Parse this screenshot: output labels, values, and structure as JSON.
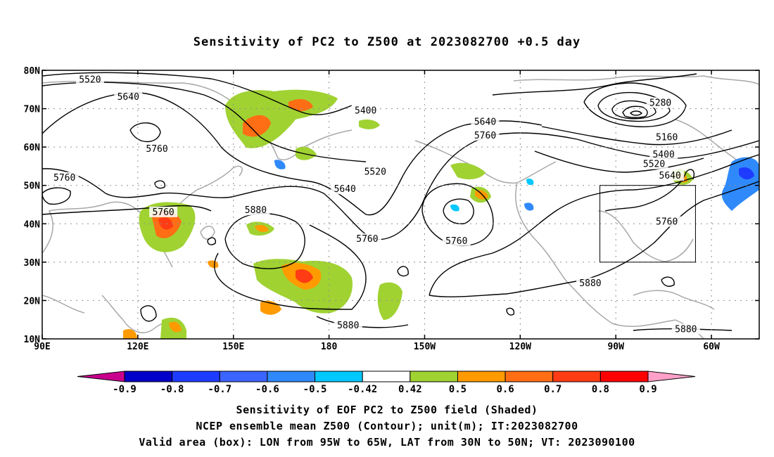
{
  "title": "Sensitivity of PC2 to Z500 at 2023082700 +0.5 day",
  "map": {
    "lat_ticks": [
      "80N",
      "70N",
      "60N",
      "50N",
      "40N",
      "30N",
      "20N",
      "10N"
    ],
    "lon_ticks": [
      "90E",
      "120E",
      "150E",
      "180",
      "150W",
      "120W",
      "90W",
      "60W"
    ],
    "lon_range": [
      "90E",
      "45W"
    ],
    "lat_range": [
      "10N",
      "80N"
    ],
    "grid": "dotted",
    "box": {
      "lon": [
        "95W",
        "65W"
      ],
      "lat": [
        "30N",
        "50N"
      ]
    },
    "contour_labels": [
      {
        "text": "5520",
        "lon": 105,
        "lat": 77.5
      },
      {
        "text": "5640",
        "lon": 117,
        "lat": 73
      },
      {
        "text": "5400",
        "lon": -168.5,
        "lat": 69.5
      },
      {
        "text": "5760",
        "lon": 126,
        "lat": 59.5
      },
      {
        "text": "5760",
        "lon": 97,
        "lat": 52
      },
      {
        "text": "5760",
        "lon": 128,
        "lat": 43
      },
      {
        "text": "5880",
        "lon": 157,
        "lat": 43.5
      },
      {
        "text": "5640",
        "lon": -175,
        "lat": 49
      },
      {
        "text": "5520",
        "lon": -165.5,
        "lat": 53.5
      },
      {
        "text": "5760",
        "lon": -168,
        "lat": 36
      },
      {
        "text": "5640",
        "lon": -131,
        "lat": 66.5
      },
      {
        "text": "5760",
        "lon": -131,
        "lat": 63
      },
      {
        "text": "5760",
        "lon": -140,
        "lat": 35.5
      },
      {
        "text": "5280",
        "lon": -76,
        "lat": 71.5
      },
      {
        "text": "5160",
        "lon": -74,
        "lat": 62.5
      },
      {
        "text": "5400",
        "lon": -75,
        "lat": 58
      },
      {
        "text": "5520",
        "lon": -78,
        "lat": 55.5
      },
      {
        "text": "5640",
        "lon": -73,
        "lat": 52.5
      },
      {
        "text": "5760",
        "lon": -74,
        "lat": 40.5
      },
      {
        "text": "5880",
        "lon": -98,
        "lat": 24.5
      },
      {
        "text": "5880",
        "lon": -174,
        "lat": 13.5
      },
      {
        "text": "5880",
        "lon": -68,
        "lat": 12.5
      }
    ]
  },
  "colorbar": {
    "labels": [
      "-0.9",
      "-0.8",
      "-0.7",
      "-0.6",
      "-0.5",
      "-0.42",
      "0.42",
      "0.5",
      "0.6",
      "0.7",
      "0.8",
      "0.9"
    ],
    "colors": [
      "#0000c8",
      "#1e3cff",
      "#3c64ff",
      "#2f89fa",
      "#00c8ff",
      "#ffffff",
      "#a0d232",
      "#ff9b00",
      "#ff6e14",
      "#ff3c14",
      "#ff0000"
    ],
    "low_end_color": "#c8008c",
    "high_end_color": "#ffa0c8"
  },
  "footer": {
    "line1": "Sensitivity of EOF PC2 to Z500 field (Shaded)",
    "line2": "NCEP ensemble mean Z500 (Contour); unit(m); IT:2023082700",
    "line3": "Valid area (box): LON from 95W to 65W, LAT from 30N to 50N; VT: 2023090100"
  }
}
